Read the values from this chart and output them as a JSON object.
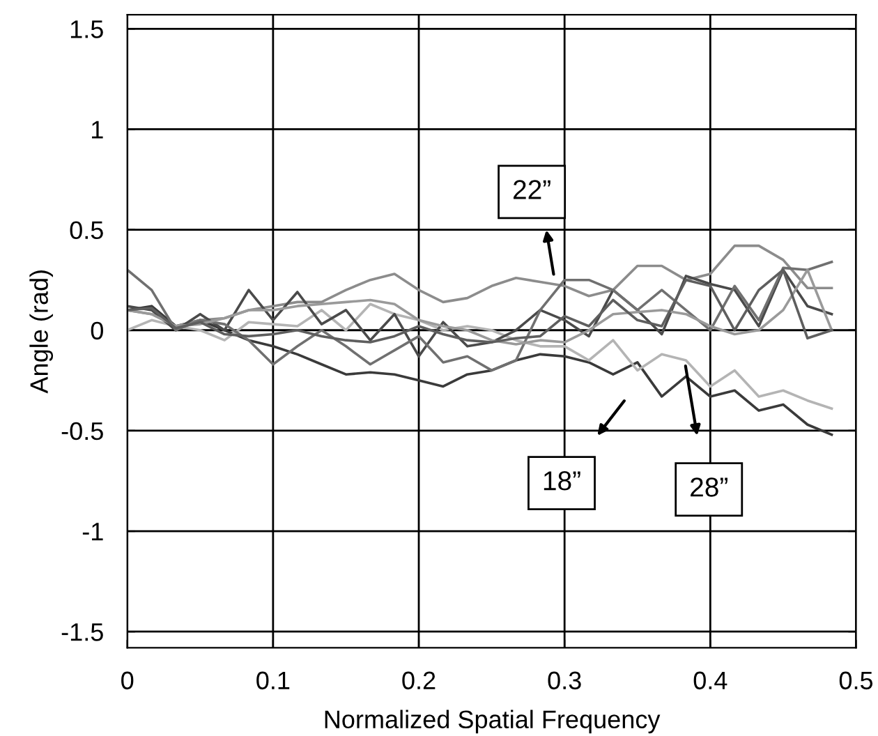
{
  "chart_data": {
    "type": "line",
    "xlabel": "Normalized Spatial Frequency",
    "ylabel": "Angle (rad)",
    "x": [
      0,
      0.0167,
      0.0333,
      0.05,
      0.0667,
      0.0833,
      0.1,
      0.1167,
      0.1333,
      0.15,
      0.1667,
      0.1833,
      0.2,
      0.2167,
      0.2333,
      0.25,
      0.2667,
      0.2833,
      0.3,
      0.3167,
      0.3333,
      0.35,
      0.3667,
      0.3833,
      0.4,
      0.4167,
      0.4333,
      0.45,
      0.4667,
      0.4833
    ],
    "series": [
      {
        "color": "#3a3a3a",
        "values": [
          0.1,
          0.12,
          0.02,
          0.05,
          0.0,
          -0.05,
          -0.08,
          -0.12,
          -0.17,
          -0.22,
          -0.21,
          -0.22,
          -0.25,
          -0.28,
          -0.22,
          -0.2,
          -0.15,
          -0.12,
          -0.13,
          -0.16,
          -0.22,
          -0.16,
          -0.33,
          -0.23,
          -0.33,
          -0.3,
          -0.4,
          -0.37,
          -0.47,
          -0.52
        ]
      },
      {
        "color": "#b4b4b4",
        "values": [
          0.0,
          0.05,
          0.02,
          0.0,
          -0.05,
          0.04,
          0.03,
          0.02,
          0.1,
          0.0,
          0.13,
          0.08,
          0.05,
          0.0,
          0.02,
          0.0,
          -0.05,
          -0.08,
          -0.08,
          -0.15,
          -0.05,
          -0.2,
          -0.12,
          -0.15,
          -0.28,
          -0.2,
          -0.33,
          -0.3,
          -0.35,
          -0.39
        ]
      },
      {
        "color": "#8c8c8c",
        "values": [
          0.1,
          0.08,
          0.02,
          0.05,
          0.06,
          0.1,
          0.12,
          0.14,
          0.14,
          0.2,
          0.25,
          0.28,
          0.2,
          0.14,
          0.16,
          0.22,
          0.26,
          0.24,
          0.22,
          0.17,
          0.2,
          0.32,
          0.32,
          0.25,
          0.28,
          0.42,
          0.42,
          0.35,
          0.21,
          0.21
        ]
      },
      {
        "color": "#4a4a4a",
        "values": [
          0.12,
          0.1,
          0.0,
          0.08,
          0.0,
          0.2,
          0.05,
          0.19,
          0.03,
          0.1,
          -0.05,
          0.08,
          -0.13,
          0.04,
          -0.08,
          -0.06,
          0.0,
          0.1,
          0.05,
          -0.03,
          0.2,
          0.1,
          -0.02,
          0.27,
          0.23,
          0.2,
          0.02,
          0.3,
          0.12,
          0.08
        ]
      },
      {
        "color": "#707070",
        "values": [
          0.3,
          0.2,
          0.0,
          0.05,
          0.03,
          -0.05,
          -0.17,
          -0.08,
          0.0,
          -0.08,
          -0.17,
          -0.1,
          -0.03,
          -0.16,
          -0.13,
          -0.2,
          -0.15,
          0.1,
          0.25,
          0.25,
          0.2,
          0.1,
          0.2,
          0.1,
          0.0,
          0.22,
          0.05,
          0.31,
          0.3,
          0.34
        ]
      },
      {
        "color": "#9a9a9a",
        "values": [
          0.1,
          0.08,
          0.02,
          0.03,
          0.06,
          0.1,
          0.1,
          0.12,
          0.13,
          0.14,
          0.15,
          0.13,
          0.05,
          0.02,
          0.0,
          -0.05,
          -0.07,
          -0.05,
          -0.06,
          0.0,
          0.08,
          0.09,
          0.1,
          0.08,
          0.02,
          -0.02,
          0.0,
          0.1,
          0.3,
          0.0
        ]
      },
      {
        "color": "#5e5e5e",
        "values": [
          0.1,
          0.11,
          0.01,
          0.04,
          -0.02,
          -0.03,
          -0.02,
          0.0,
          -0.03,
          -0.05,
          -0.06,
          -0.03,
          0.02,
          -0.02,
          -0.05,
          -0.06,
          -0.04,
          -0.03,
          0.07,
          0.02,
          0.15,
          0.05,
          0.02,
          0.25,
          0.22,
          0.0,
          0.2,
          0.3,
          -0.04,
          0.0
        ]
      }
    ],
    "xlim": [
      0,
      0.5
    ],
    "ylim": [
      -1.58,
      1.57
    ],
    "xticks": [
      0,
      0.1,
      0.2,
      0.3,
      0.4,
      0.5
    ],
    "yticks": [
      1.5,
      1,
      0.5,
      0,
      -0.5,
      -1,
      -1.5
    ],
    "grid": true,
    "legend": false,
    "marker": "none",
    "line_style": "solid",
    "annotations": [
      "22”",
      "18”",
      "28”"
    ]
  }
}
